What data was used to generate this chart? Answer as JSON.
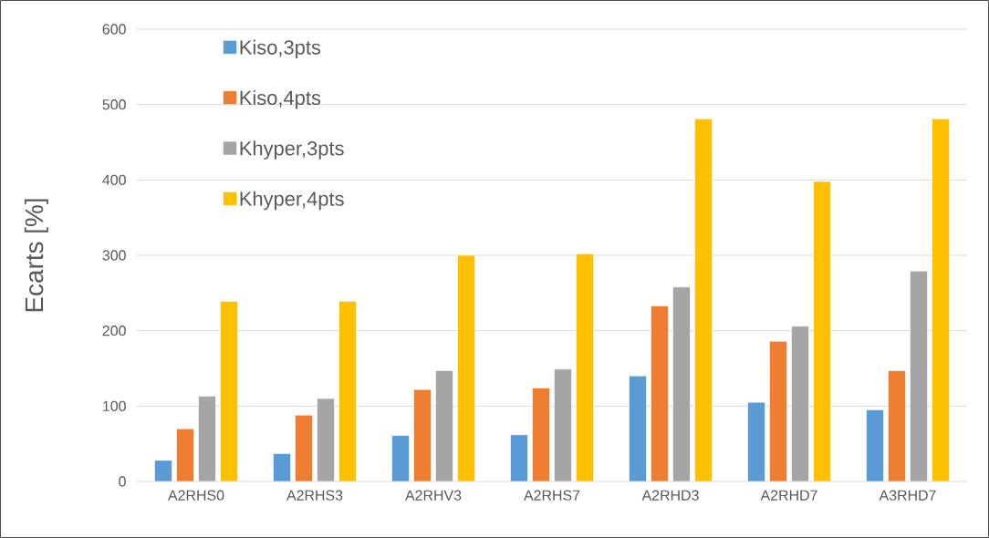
{
  "chart_data": {
    "type": "bar",
    "ylabel": "Ecarts [%]",
    "categories": [
      "A2RHS0",
      "A2RHS3",
      "A2RHV3",
      "A2RHS7",
      "A2RHD3",
      "A2RHD7",
      "A3RHD7"
    ],
    "series": [
      {
        "name": "Kiso,3pts",
        "color": "#5b9bd5",
        "values": [
          28,
          37,
          61,
          62,
          140,
          105,
          95
        ]
      },
      {
        "name": "Kiso,4pts",
        "color": "#ed7d31",
        "values": [
          70,
          88,
          122,
          124,
          233,
          186,
          147
        ]
      },
      {
        "name": "Khyper,3pts",
        "color": "#a5a5a5",
        "values": [
          113,
          110,
          147,
          149,
          258,
          206,
          279
        ]
      },
      {
        "name": "Khyper,4pts",
        "color": "#ffc000",
        "values": [
          239,
          239,
          300,
          302,
          481,
          398,
          481
        ]
      }
    ],
    "ylim": [
      0,
      600
    ],
    "yticks": [
      0,
      100,
      200,
      300,
      400,
      500,
      600
    ],
    "grid": "y",
    "legend": "top left"
  }
}
